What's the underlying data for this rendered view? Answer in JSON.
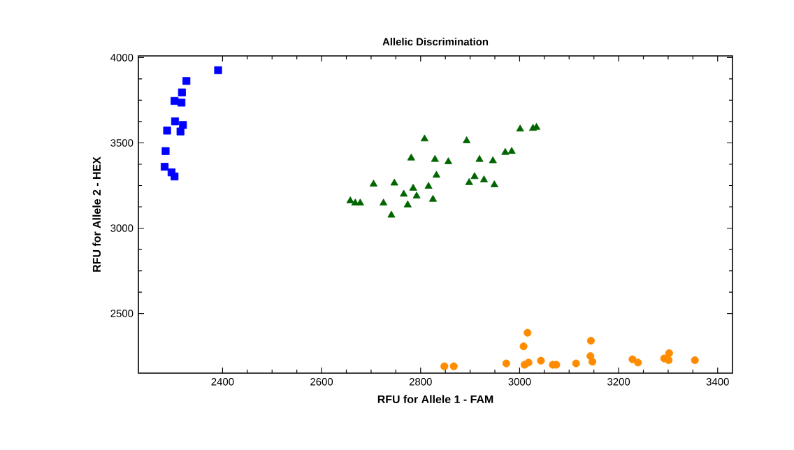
{
  "chart_data": {
    "type": "scatter",
    "title": "Allelic Discrimination",
    "xlabel": "RFU for Allele 1 - FAM",
    "ylabel": "RFU for Allele 2 - HEX",
    "xlim": [
      2230,
      3430
    ],
    "ylim": [
      2150,
      4010
    ],
    "xticks": [
      2400,
      2600,
      2800,
      3000,
      3200,
      3400
    ],
    "yticks": [
      2500,
      3000,
      3500,
      4000
    ],
    "series": [
      {
        "color": "#0000ff",
        "marker": "square",
        "x": [
          2391,
          2327,
          2318,
          2303,
          2317,
          2304,
          2320,
          2315,
          2288,
          2285,
          2283,
          2297,
          2303
        ],
        "values": [
          3926,
          3863,
          3796,
          3746,
          3736,
          3626,
          3605,
          3567,
          3572,
          3452,
          3360,
          3327,
          3303
        ]
      },
      {
        "color": "#006400",
        "marker": "triangle",
        "x": [
          2808,
          2893,
          3001,
          3027,
          3034,
          2781,
          2829,
          2856,
          2919,
          2946,
          2971,
          2984,
          2705,
          2747,
          2785,
          2832,
          2816,
          2909,
          2928,
          2898,
          2949,
          2766,
          2792,
          2825,
          2658,
          2668,
          2678,
          2725,
          2774,
          2741
        ],
        "values": [
          3523,
          3512,
          3581,
          3585,
          3591,
          3411,
          3403,
          3389,
          3403,
          3395,
          3444,
          3450,
          3258,
          3264,
          3234,
          3310,
          3245,
          3302,
          3283,
          3267,
          3254,
          3199,
          3188,
          3169,
          3160,
          3147,
          3147,
          3147,
          3136,
          3076
        ]
      },
      {
        "color": "#ff8c00",
        "marker": "circle",
        "x": [
          2848,
          2867,
          2973,
          3008,
          3016,
          3010,
          3018,
          3043,
          3067,
          3074,
          3114,
          3144,
          3143,
          3147,
          3228,
          3239,
          3292,
          3302,
          3301,
          3354
        ],
        "values": [
          2190,
          2190,
          2207,
          2307,
          2387,
          2199,
          2212,
          2223,
          2199,
          2199,
          2207,
          2340,
          2250,
          2217,
          2231,
          2212,
          2236,
          2267,
          2226,
          2226
        ]
      }
    ]
  }
}
